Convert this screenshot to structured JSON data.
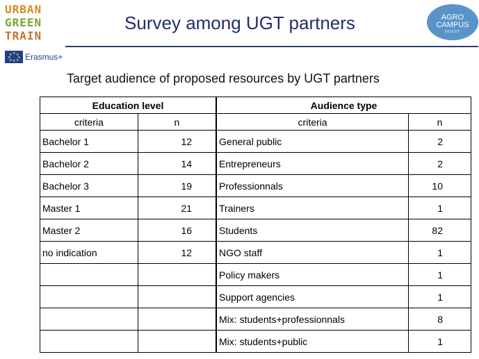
{
  "logo": {
    "lines": [
      "URBAN",
      "GREEN",
      "TRAIN"
    ],
    "erasmus": "Erasmus+"
  },
  "partner_logo": {
    "line1": "AGRO",
    "line2": "CAMPUS",
    "line3": "OUEST"
  },
  "title": "Survey among UGT partners",
  "subtitle": "Target audience of proposed resources by UGT partners",
  "table": {
    "group_headers": [
      "Education level",
      "Audience type"
    ],
    "sub_headers": [
      "criteria",
      "n",
      "criteria",
      "n"
    ],
    "education": [
      {
        "criteria": "Bachelor 1",
        "n": "12"
      },
      {
        "criteria": "Bachelor 2",
        "n": "14"
      },
      {
        "criteria": "Bachelor 3",
        "n": "19"
      },
      {
        "criteria": "Master 1",
        "n": "21"
      },
      {
        "criteria": "Master 2",
        "n": "16"
      },
      {
        "criteria": "no indication",
        "n": "12"
      },
      {
        "criteria": "",
        "n": ""
      },
      {
        "criteria": "",
        "n": ""
      },
      {
        "criteria": "",
        "n": ""
      },
      {
        "criteria": "",
        "n": ""
      }
    ],
    "audience": [
      {
        "criteria": "General public",
        "n": "2"
      },
      {
        "criteria": "Entrepreneurs",
        "n": "2"
      },
      {
        "criteria": "Professionnals",
        "n": "10"
      },
      {
        "criteria": "Trainers",
        "n": "1"
      },
      {
        "criteria": "Students",
        "n": "82"
      },
      {
        "criteria": "NGO staff",
        "n": "1"
      },
      {
        "criteria": "Policy makers",
        "n": "1"
      },
      {
        "criteria": "Support agencies",
        "n": "1"
      },
      {
        "criteria": "Mix: students+professionnals",
        "n": "8"
      },
      {
        "criteria": "Mix: students+public",
        "n": "1"
      }
    ]
  }
}
